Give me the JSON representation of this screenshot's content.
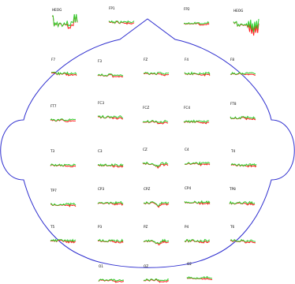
{
  "colors": {
    "head_outline": "#2e2ecf",
    "trace_a": "#ff1a1a",
    "trace_b": "#2ed12e"
  },
  "channels": [
    {
      "label": "HEOG",
      "wave": "wild"
    },
    {
      "label": "FP1",
      "wave": "normal"
    },
    {
      "label": "FP2",
      "wave": "normal"
    },
    {
      "label": "HEOG",
      "wave": "wild2"
    },
    {
      "label": "F7",
      "wave": "normal"
    },
    {
      "label": "F3",
      "wave": "normal"
    },
    {
      "label": "FZ",
      "wave": "normal"
    },
    {
      "label": "F4",
      "wave": "normal"
    },
    {
      "label": "F8",
      "wave": "normal"
    },
    {
      "label": "FT7",
      "wave": "normal"
    },
    {
      "label": "FC3",
      "wave": "normal"
    },
    {
      "label": "FCZ",
      "wave": "normal"
    },
    {
      "label": "FC4",
      "wave": "normal"
    },
    {
      "label": "FT8",
      "wave": "normal"
    },
    {
      "label": "T3",
      "wave": "normal"
    },
    {
      "label": "C3",
      "wave": "normal"
    },
    {
      "label": "CZ",
      "wave": "dip"
    },
    {
      "label": "C4",
      "wave": "normal"
    },
    {
      "label": "T4",
      "wave": "normal"
    },
    {
      "label": "TP7",
      "wave": "normal"
    },
    {
      "label": "CP3",
      "wave": "normal"
    },
    {
      "label": "CPZ",
      "wave": "dip"
    },
    {
      "label": "CP4",
      "wave": "normal"
    },
    {
      "label": "TP8",
      "wave": "normal"
    },
    {
      "label": "T5",
      "wave": "normal"
    },
    {
      "label": "P3",
      "wave": "normal"
    },
    {
      "label": "PZ",
      "wave": "dip"
    },
    {
      "label": "P4",
      "wave": "normal"
    },
    {
      "label": "T6",
      "wave": "normal"
    },
    {
      "label": "O1",
      "wave": "normal"
    },
    {
      "label": "OZ",
      "wave": "normal"
    },
    {
      "label": "O2",
      "wave": "normal"
    }
  ]
}
